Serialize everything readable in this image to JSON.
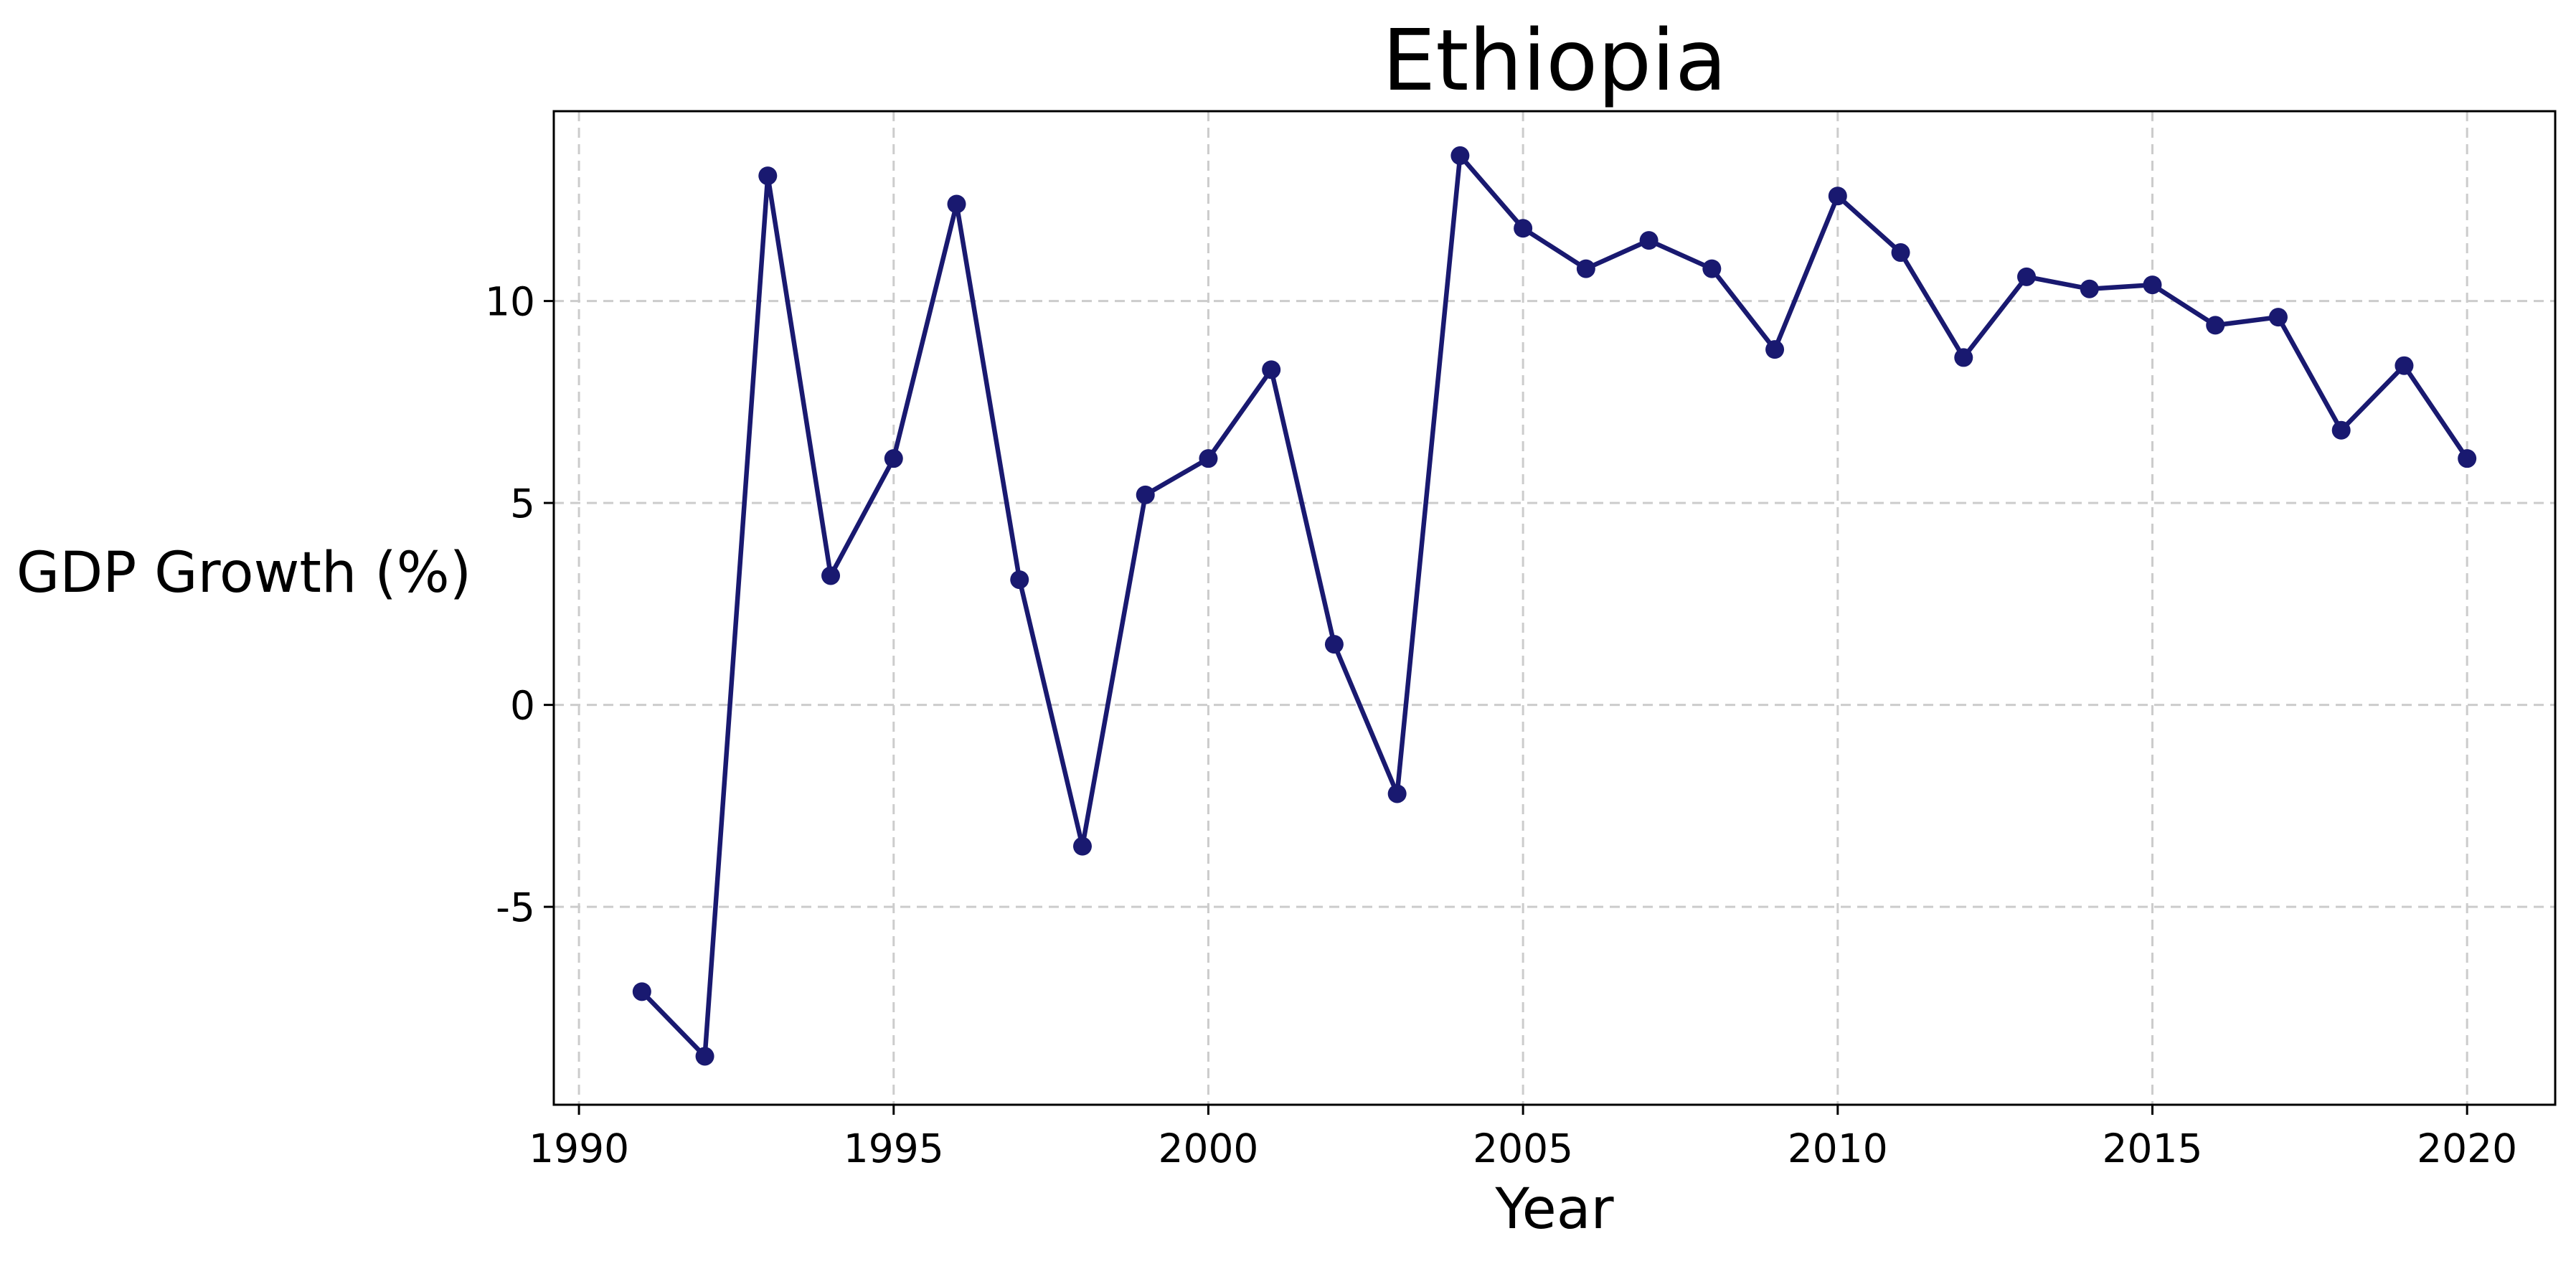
{
  "chart_data": {
    "type": "line",
    "title": "Ethiopia",
    "xlabel": "Year",
    "ylabel": "GDP Growth (%)",
    "xlim": [
      1989.6,
      2021.4
    ],
    "ylim": [
      -9.9,
      14.7
    ],
    "xticks": [
      1990,
      1995,
      2000,
      2005,
      2010,
      2015,
      2020
    ],
    "yticks": [
      -5,
      0,
      5,
      10
    ],
    "grid": true,
    "line_color": "#191970",
    "series": [
      {
        "x": [
          1991,
          1992,
          1993,
          1994,
          1995,
          1996,
          1997,
          1998,
          1999,
          2000,
          2001,
          2002,
          2003,
          2004,
          2005,
          2006,
          2007,
          2008,
          2009,
          2010,
          2011,
          2012,
          2013,
          2014,
          2015,
          2016,
          2017,
          2018,
          2019,
          2020
        ],
        "values": [
          -7.1,
          -8.7,
          13.1,
          3.2,
          6.1,
          12.4,
          3.1,
          -3.5,
          5.2,
          6.1,
          8.3,
          1.5,
          -2.2,
          13.6,
          11.8,
          10.8,
          11.5,
          10.8,
          8.8,
          12.6,
          11.2,
          8.6,
          10.6,
          10.3,
          10.4,
          9.4,
          9.6,
          6.8,
          8.4,
          6.1
        ]
      }
    ]
  }
}
